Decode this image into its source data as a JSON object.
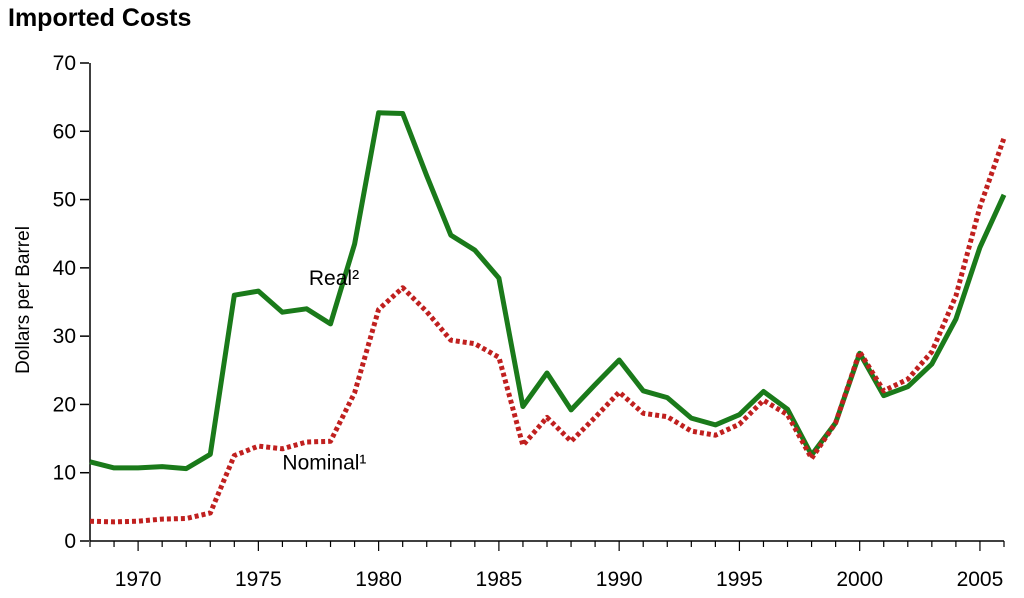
{
  "chart_data": {
    "type": "line",
    "title": "Imported Costs",
    "xlabel": "",
    "ylabel": "Dollars per Barrel",
    "xlim": [
      1968,
      2006
    ],
    "ylim": [
      0,
      70
    ],
    "yticks": [
      0,
      10,
      20,
      30,
      40,
      50,
      60,
      70
    ],
    "xticks": [
      1970,
      1975,
      1980,
      1985,
      1990,
      1995,
      2000,
      2005
    ],
    "x": [
      1968,
      1969,
      1970,
      1971,
      1972,
      1973,
      1974,
      1975,
      1976,
      1977,
      1978,
      1979,
      1980,
      1981,
      1982,
      1983,
      1984,
      1985,
      1986,
      1987,
      1988,
      1989,
      1990,
      1991,
      1992,
      1993,
      1994,
      1995,
      1996,
      1997,
      1998,
      1999,
      2000,
      2001,
      2002,
      2003,
      2004,
      2005,
      2006
    ],
    "series": [
      {
        "name": "Real²",
        "color": "#1a7a1a",
        "style": "solid",
        "values": [
          11.6,
          10.7,
          10.7,
          10.9,
          10.6,
          12.7,
          36.0,
          36.6,
          33.5,
          34.0,
          31.8,
          43.5,
          62.7,
          62.6,
          53.5,
          44.8,
          42.6,
          38.5,
          19.7,
          24.6,
          19.2,
          22.9,
          26.5,
          22.0,
          21.0,
          18.0,
          17.0,
          18.5,
          21.9,
          19.3,
          12.6,
          17.3,
          27.5,
          21.3,
          22.6,
          25.9,
          32.5,
          43.0,
          50.7
        ]
      },
      {
        "name": "Nominal¹",
        "color": "#c0201f",
        "style": "dotted",
        "values": [
          2.9,
          2.8,
          2.9,
          3.2,
          3.3,
          4.1,
          12.5,
          13.9,
          13.5,
          14.5,
          14.6,
          21.7,
          33.9,
          37.1,
          33.6,
          29.4,
          28.9,
          26.9,
          14.0,
          18.1,
          14.6,
          18.1,
          21.8,
          18.7,
          18.2,
          16.1,
          15.5,
          17.1,
          20.6,
          18.5,
          12.1,
          17.3,
          27.7,
          22.0,
          23.7,
          27.7,
          35.9,
          48.9,
          59.0
        ]
      }
    ],
    "annotations": [
      {
        "text": "Real²",
        "x": 1977.1,
        "y": 37.5
      },
      {
        "text": "Nominal¹",
        "x": 1976.0,
        "y": 10.5
      }
    ],
    "grid": false,
    "legend": "none"
  }
}
